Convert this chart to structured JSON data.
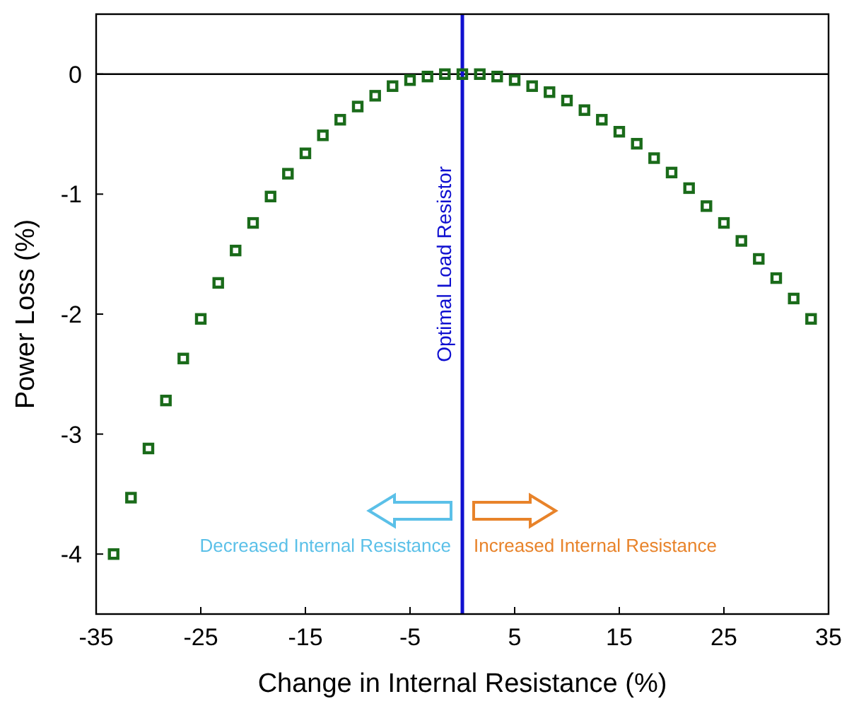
{
  "chart_data": {
    "type": "scatter",
    "xlabel": "Change in Internal Resistance (%)",
    "ylabel": "Power Loss (%)",
    "x": [
      -33.33,
      -31.67,
      -30,
      -28.33,
      -26.67,
      -25,
      -23.33,
      -21.67,
      -20,
      -18.33,
      -16.67,
      -15,
      -13.33,
      -11.67,
      -10,
      -8.33,
      -6.67,
      -5,
      -3.33,
      -1.67,
      0,
      1.67,
      3.33,
      5,
      6.67,
      8.33,
      10,
      11.67,
      13.33,
      15,
      16.67,
      18.33,
      20,
      21.67,
      23.33,
      25,
      26.67,
      28.33,
      30,
      31.67,
      33.33
    ],
    "series": [
      {
        "color": "#1a6b1a",
        "values": [
          -4.0,
          -3.53,
          -3.12,
          -2.72,
          -2.37,
          -2.04,
          -1.74,
          -1.47,
          -1.24,
          -1.02,
          -0.83,
          -0.66,
          -0.51,
          -0.38,
          -0.27,
          -0.18,
          -0.1,
          -0.05,
          -0.02,
          0,
          0,
          0,
          -0.02,
          -0.05,
          -0.1,
          -0.15,
          -0.22,
          -0.3,
          -0.38,
          -0.48,
          -0.58,
          -0.7,
          -0.82,
          -0.95,
          -1.1,
          -1.24,
          -1.39,
          -1.54,
          -1.7,
          -1.87,
          -2.04
        ]
      }
    ],
    "xlim": [
      -35,
      35
    ],
    "xticks": [
      -35,
      -25,
      -15,
      -5,
      5,
      15,
      25,
      35
    ],
    "ylim": [
      -4.5,
      0.5
    ],
    "yticks": [
      -4,
      -3,
      -2,
      -1,
      0
    ],
    "marker": "square",
    "grid": false,
    "ref_lines": [
      {
        "axis": "y",
        "value": 0,
        "color": "#000000"
      },
      {
        "axis": "x",
        "value": 0,
        "label": "Optimal Load Resistor",
        "color": "#1010d0"
      }
    ],
    "annotations": [
      "Decreased Internal Resistance",
      "Increased Internal Resistance"
    ]
  }
}
